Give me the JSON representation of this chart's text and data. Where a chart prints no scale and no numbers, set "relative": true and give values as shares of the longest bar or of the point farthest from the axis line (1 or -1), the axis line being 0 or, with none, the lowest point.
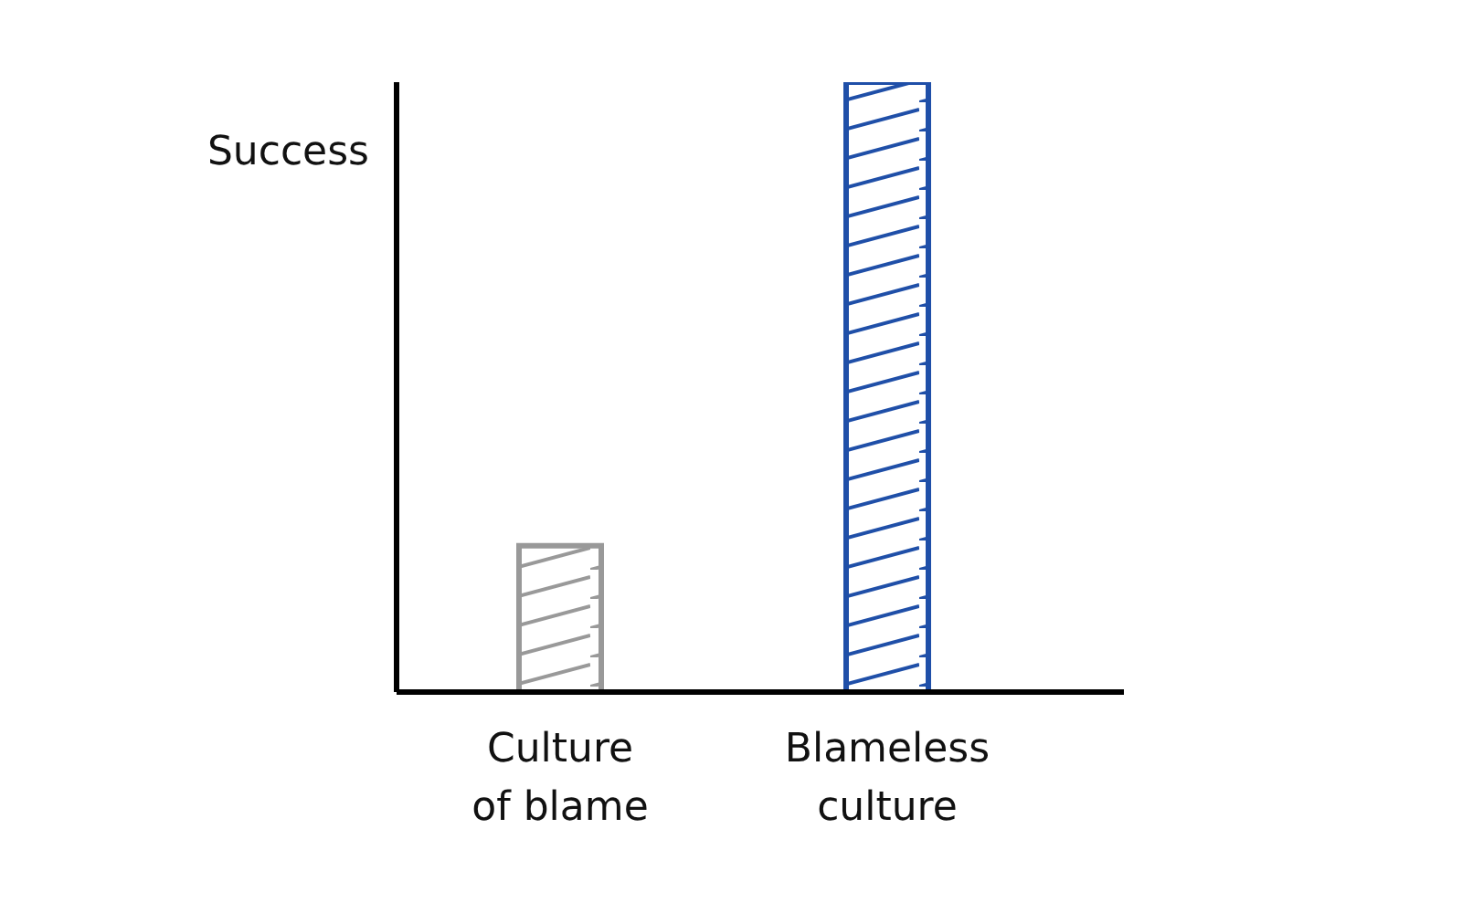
{
  "chart_data": {
    "type": "bar",
    "relative": true,
    "ylabel": "Success",
    "categories": [
      "Culture of blame",
      "Blameless culture"
    ],
    "values": [
      0.24,
      1
    ],
    "colors": [
      "#999999",
      "#1f4fa8"
    ],
    "grid": false,
    "legend": false
  }
}
